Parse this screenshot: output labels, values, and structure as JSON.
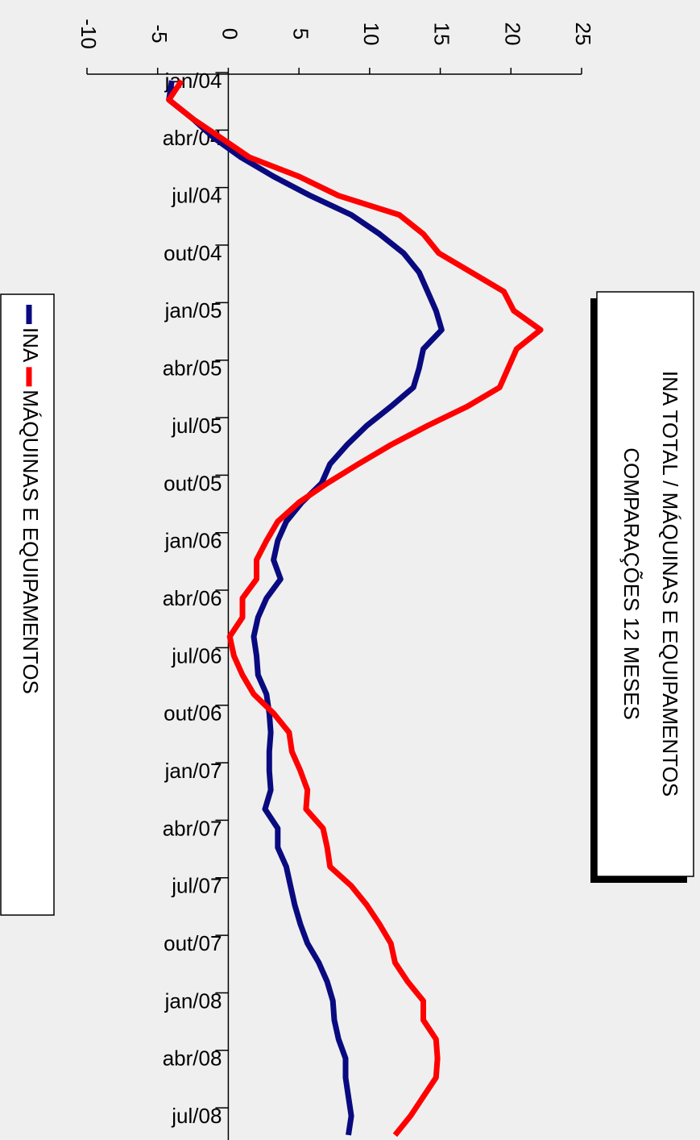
{
  "chart_data": {
    "type": "line",
    "title": "INA TOTAL / MÁQUINAS E EQUIPAMENTOS",
    "subtitle": "COMPARAÇÕES 12 MESES",
    "categories": [
      "jan/04",
      null,
      null,
      "abr/04",
      null,
      null,
      "jul/04",
      null,
      null,
      "out/04",
      null,
      null,
      "jan/05",
      null,
      null,
      "abr/05",
      null,
      null,
      "jul/05",
      null,
      null,
      "out/05",
      null,
      null,
      "jan/06",
      null,
      null,
      "abr/06",
      null,
      null,
      "jul/06",
      null,
      null,
      "out/06",
      null,
      null,
      "jan/07",
      null,
      null,
      "abr/07",
      null,
      null,
      "jul/07",
      null,
      null,
      "out/07",
      null,
      null,
      "jan/08",
      null,
      null,
      "abr/08",
      null,
      null,
      "jul/08",
      null
    ],
    "series": [
      {
        "name": "INA",
        "color": "#0a0a80",
        "values": [
          -4.0,
          -4.2,
          -2.5,
          -1.0,
          0.9,
          3.2,
          5.8,
          8.7,
          10.7,
          12.4,
          13.5,
          14.1,
          14.7,
          15.1,
          13.8,
          13.5,
          13.1,
          11.5,
          9.8,
          8.4,
          7.2,
          6.6,
          5.2,
          4.1,
          3.5,
          3.2,
          3.7,
          2.7,
          2.1,
          1.8,
          2.0,
          2.1,
          2.7,
          2.9,
          3.0,
          2.9,
          2.9,
          3.0,
          2.6,
          3.5,
          3.5,
          4.1,
          4.4,
          4.7,
          5.1,
          5.6,
          6.4,
          7.0,
          7.4,
          7.5,
          7.8,
          8.3,
          8.3,
          8.5,
          8.7,
          8.5
        ]
      },
      {
        "name": "MÁQUINAS E EQUIPAMENTOS",
        "color": "#ff0000",
        "values": [
          -3.3,
          -4.2,
          -2.5,
          -0.5,
          1.5,
          5.0,
          7.8,
          12.1,
          13.8,
          14.9,
          17.2,
          19.5,
          20.2,
          22.1,
          20.4,
          19.8,
          19.2,
          16.9,
          14.1,
          11.5,
          9.2,
          7.0,
          5.0,
          3.5,
          2.7,
          2.0,
          2.0,
          1.0,
          1.0,
          0.1,
          0.4,
          1.0,
          1.8,
          3.2,
          4.3,
          4.5,
          5.1,
          5.6,
          5.5,
          6.7,
          7.0,
          7.2,
          8.7,
          9.8,
          10.7,
          11.5,
          11.8,
          12.7,
          13.8,
          13.8,
          14.7,
          14.8,
          14.7,
          13.8,
          12.9,
          11.8
        ]
      }
    ],
    "ylim": [
      -10,
      25
    ],
    "yticks": [
      -10,
      -5,
      0,
      5,
      10,
      15,
      20,
      25
    ],
    "grid": false
  }
}
